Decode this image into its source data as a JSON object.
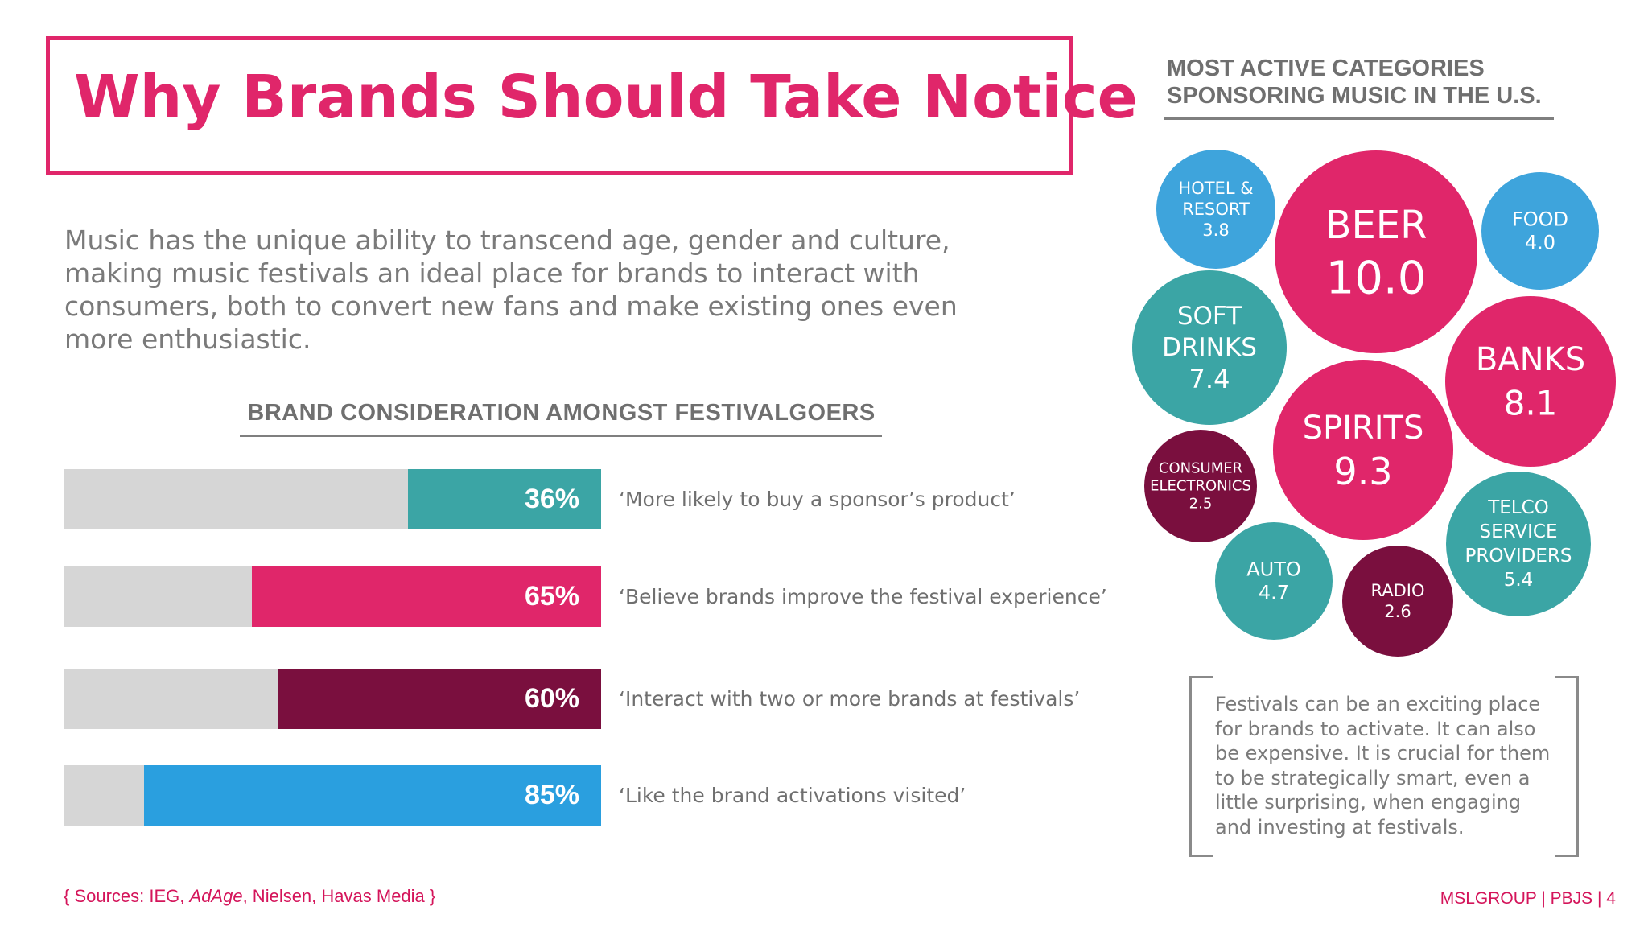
{
  "title": "Why Brands Should Take Notice",
  "intro": "Music has the unique ability to transcend age, gender and culture, making music festivals an ideal place for brands to interact with consumers, both to convert new fans and make existing ones even more enthusiastic.",
  "colors": {
    "accent": "#e0266a",
    "teal": "#3ba5a5",
    "pink": "#e0266a",
    "maroon": "#7a0f3e",
    "blue": "#2a9fdf",
    "light_blue": "#3ea4dc",
    "track": "#d6d6d6"
  },
  "note": "Festivals can be an exciting place for brands to activate. It can also be expensive. It is crucial for them to be strategically smart, even a little surprising, when engaging and investing at festivals.",
  "sources": {
    "open": "{ Sources: IEG, ",
    "italic": "AdAge",
    "rest": ", Nielsen, Havas Media  }"
  },
  "footer": "MSLGROUP | PBJS |  4",
  "chart_data": [
    {
      "type": "bar",
      "title": "BRAND CONSIDERATION AMONGST FESTIVALGOERS",
      "orientation": "horizontal",
      "unit": "%",
      "ylim": [
        0,
        100
      ],
      "bars": [
        {
          "value": 36,
          "display": "36%",
          "label": "‘More likely to buy a sponsor’s product’",
          "color": "#3ba5a5"
        },
        {
          "value": 65,
          "display": "65%",
          "label": "‘Believe brands improve the festival experience’",
          "color": "#e0266a"
        },
        {
          "value": 60,
          "display": "60%",
          "label": "‘Interact with two or more brands at festivals’",
          "color": "#7a0f3e"
        },
        {
          "value": 85,
          "display": "85%",
          "label": "‘Like the brand activations visited’",
          "color": "#2a9fdf"
        }
      ]
    },
    {
      "type": "bubble",
      "title": "MOST ACTIVE CATEGORIES\nSPONSORING MUSIC IN THE U.S.",
      "bubbles": [
        {
          "label": [
            "BEER"
          ],
          "value": 10.0,
          "display": "10.0",
          "color": "#e0266a"
        },
        {
          "label": [
            "SPIRITS"
          ],
          "value": 9.3,
          "display": "9.3",
          "color": "#e0266a"
        },
        {
          "label": [
            "BANKS"
          ],
          "value": 8.1,
          "display": "8.1",
          "color": "#e0266a"
        },
        {
          "label": [
            "SOFT",
            "DRINKS"
          ],
          "value": 7.4,
          "display": "7.4",
          "color": "#3ba5a5"
        },
        {
          "label": [
            "TELCO",
            "SERVICE",
            "PROVIDERS"
          ],
          "value": 5.4,
          "display": "5.4",
          "color": "#3ba5a5"
        },
        {
          "label": [
            "AUTO"
          ],
          "value": 4.7,
          "display": "4.7",
          "color": "#3ba5a5"
        },
        {
          "label": [
            "FOOD"
          ],
          "value": 4.0,
          "display": "4.0",
          "color": "#3ea4dc"
        },
        {
          "label": [
            "HOTEL &",
            "RESORT"
          ],
          "value": 3.8,
          "display": "3.8",
          "color": "#3ea4dc"
        },
        {
          "label": [
            "RADIO"
          ],
          "value": 2.6,
          "display": "2.6",
          "color": "#7a0f3e"
        },
        {
          "label": [
            "CONSUMER",
            "ELECTRONICS"
          ],
          "value": 2.5,
          "display": "2.5",
          "color": "#7a0f3e"
        }
      ]
    }
  ]
}
